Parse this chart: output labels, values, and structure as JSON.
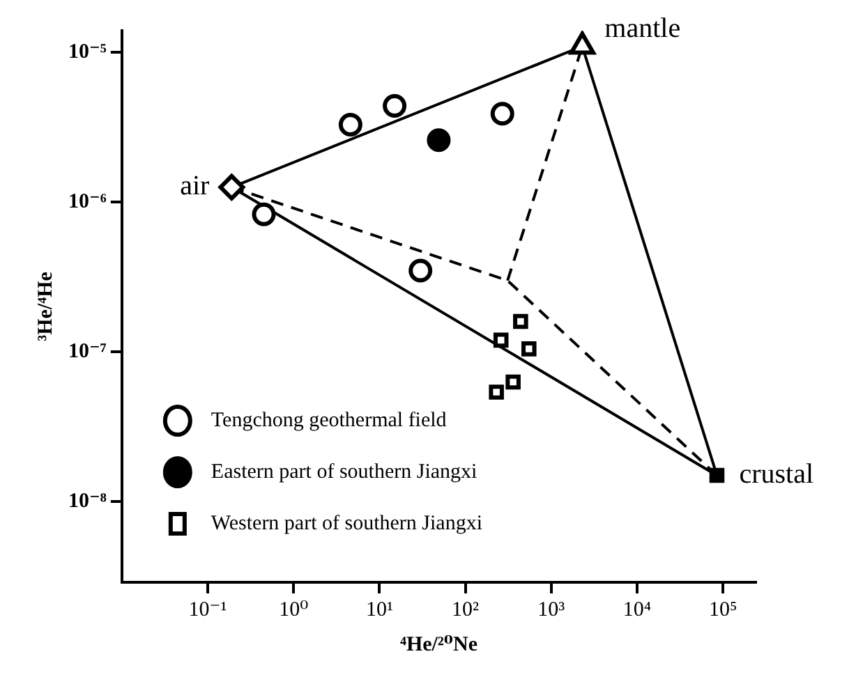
{
  "chart_data": {
    "type": "scatter",
    "xlabel": "⁴He/²⁰Ne",
    "ylabel": "³He/⁴He",
    "log": "xy",
    "grid": false,
    "legend": "bottom left",
    "xlim": [
      0.01,
      240000
    ],
    "ylim": [
      2.9e-09,
      1.4e-05
    ],
    "xticks": [
      {
        "value": 0.1,
        "label": "10⁻¹"
      },
      {
        "value": 1,
        "label": "10⁰"
      },
      {
        "value": 10,
        "label": "10¹"
      },
      {
        "value": 100,
        "label": "10²"
      },
      {
        "value": 1000,
        "label": "10³"
      },
      {
        "value": 10000,
        "label": "10⁴"
      },
      {
        "value": 100000,
        "label": "10⁵"
      }
    ],
    "yticks": [
      {
        "value": 1e-08,
        "label": "10⁻⁸"
      },
      {
        "value": 1e-07,
        "label": "10⁻⁷"
      },
      {
        "value": 1e-06,
        "label": "10⁻⁶"
      },
      {
        "value": 1e-05,
        "label": "10⁻⁵"
      }
    ],
    "series": [
      {
        "name": "Tengchong geothermal field",
        "type": "scatter",
        "marker": "circle",
        "color": "#ffffff",
        "x": [
          4.6,
          15,
          270,
          0.45,
          30
        ],
        "values": [
          3.3e-06,
          4.4e-06,
          3.9e-06,
          8.3e-07,
          3.5e-07
        ]
      },
      {
        "name": "Eastern part of southern Jiangxi",
        "type": "scatter",
        "marker": "circle",
        "color": "#000000",
        "x": [
          49
        ],
        "values": [
          2.6e-06
        ]
      },
      {
        "name": "Western part of southern Jiangxi",
        "type": "scatter",
        "marker": "square",
        "color": "#ffffff",
        "x": [
          440,
          260,
          550,
          360,
          230
        ],
        "values": [
          1.6e-07,
          1.2e-07,
          1.05e-07,
          6.3e-08,
          5.4e-08
        ]
      },
      {
        "type": "line",
        "marker": "none",
        "line_style": "solid",
        "color": "#000000",
        "x": [
          0.19,
          2300,
          85000
        ],
        "values": [
          1.26e-06,
          1.1e-05,
          1.5e-08
        ]
      },
      {
        "type": "line",
        "marker": "none",
        "line_style": "solid",
        "color": "#000000",
        "x": [
          0.19,
          85000
        ],
        "values": [
          1.26e-06,
          1.5e-08
        ]
      },
      {
        "type": "line",
        "marker": "none",
        "line_style": "dashed",
        "color": "#000000",
        "x": [
          0.19,
          310,
          85000
        ],
        "values": [
          1.26e-06,
          3e-07,
          1.5e-08
        ]
      },
      {
        "type": "line",
        "marker": "none",
        "line_style": "dashed",
        "color": "#000000",
        "x": [
          310,
          2300
        ],
        "values": [
          3e-07,
          1.1e-05
        ]
      },
      {
        "type": "scatter",
        "marker": "diamond",
        "color": "#ffffff",
        "x": [
          0.19
        ],
        "values": [
          1.26e-06
        ]
      },
      {
        "type": "scatter",
        "marker": "triangle",
        "color": "#ffffff",
        "x": [
          2300
        ],
        "values": [
          1.1e-05
        ]
      },
      {
        "type": "scatter",
        "marker": "square",
        "color": "#000000",
        "x": [
          85000
        ],
        "values": [
          1.5e-08
        ]
      }
    ],
    "annotations": [
      {
        "text": "air",
        "x": 0.19,
        "y": 1.26e-06
      },
      {
        "text": "mantle",
        "x": 2300,
        "y": 1.1e-05
      },
      {
        "text": "crustal",
        "x": 85000,
        "y": 1.5e-08
      }
    ]
  }
}
